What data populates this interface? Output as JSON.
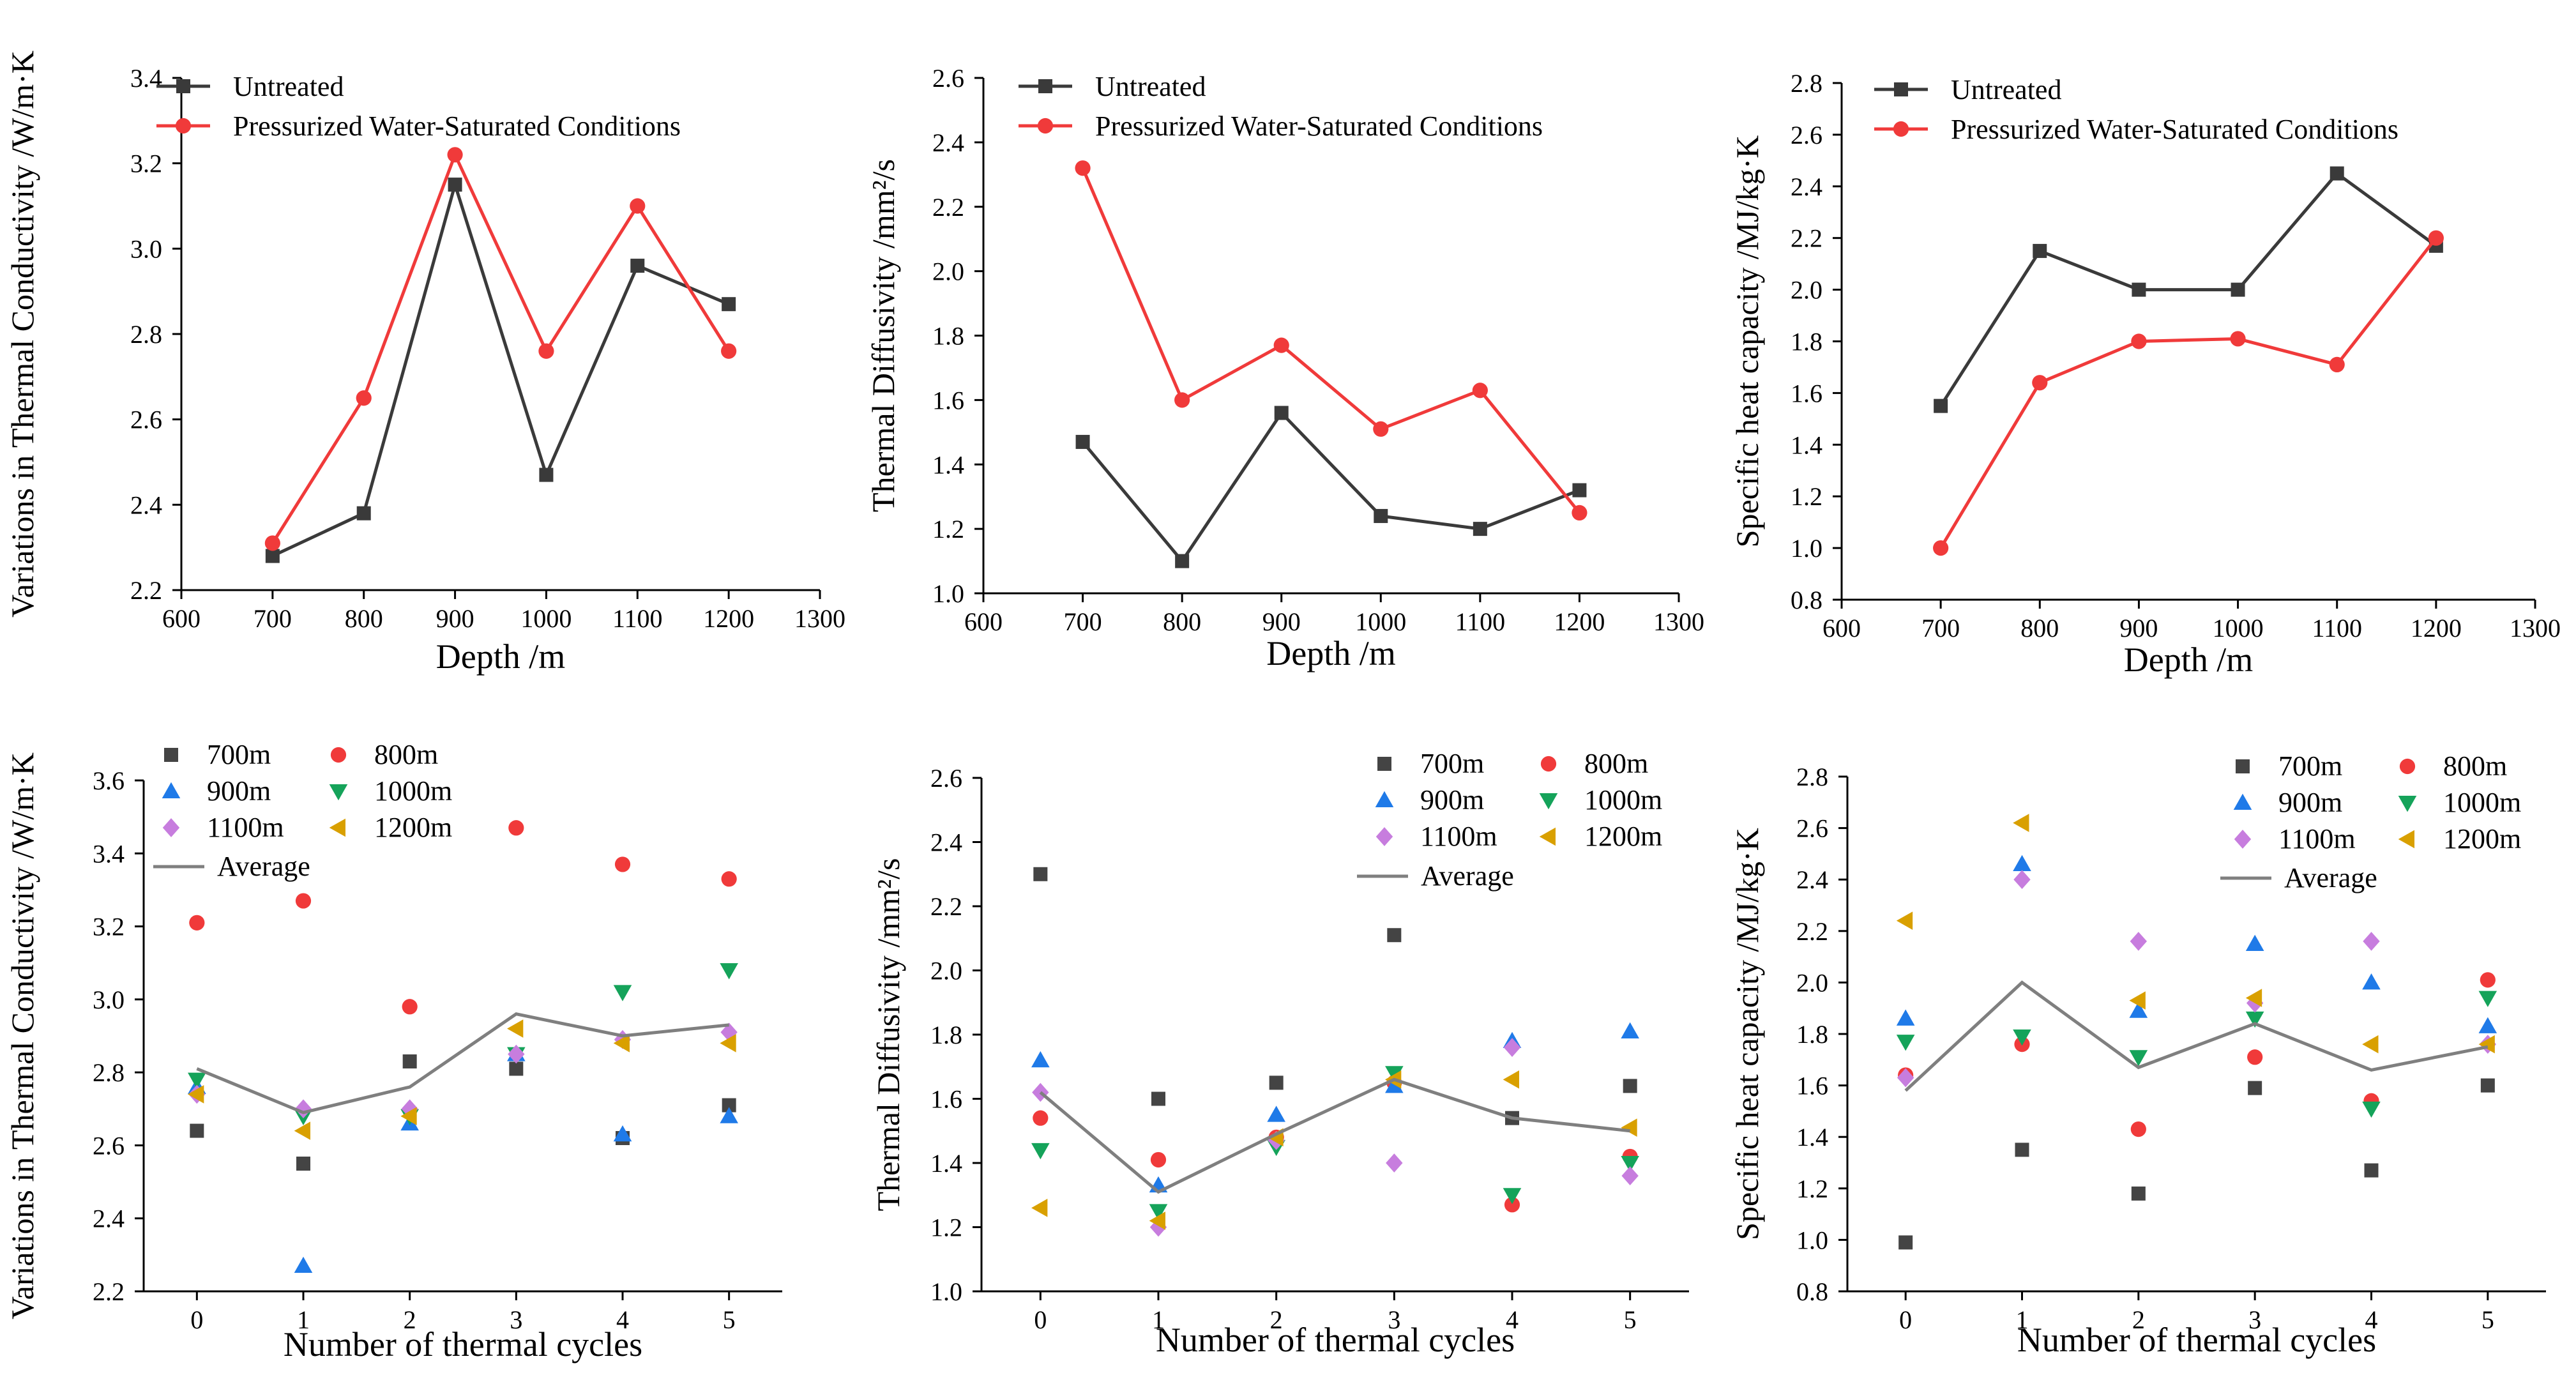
{
  "colors": {
    "untreated": "#3a3a3a",
    "pressurized": "#f03a3a",
    "average": "#7f7f7f",
    "d700": "#444444",
    "d800": "#f03a3a",
    "d900": "#1f7ae8",
    "d1000": "#15a35a",
    "d1100": "#c77dde",
    "d1200": "#d9a000"
  },
  "chart_data": [
    {
      "type": "line",
      "id": "conductivity-depth",
      "xlabel": "Depth /m",
      "ylabel": "Variations in Thermal Conductivity /W/m·K",
      "xlim": [
        600,
        1300
      ],
      "ylim": [
        2.2,
        3.4
      ],
      "xticks": [
        600,
        700,
        800,
        900,
        1000,
        1100,
        1200,
        1300
      ],
      "xtick_labels": [
        "600",
        "700",
        "800",
        "900",
        "1000",
        "1100",
        "1200",
        "1300"
      ],
      "yticks": [
        2.2,
        2.4,
        2.6,
        2.8,
        3.0,
        3.2,
        3.4
      ],
      "ytick_labels": [
        "2.2",
        "2.4",
        "2.6",
        "2.8",
        "3.0",
        "3.2",
        "3.4"
      ],
      "x": [
        700,
        800,
        900,
        1000,
        1100,
        1200
      ],
      "series": [
        {
          "name": "Untreated",
          "marker": "square",
          "values": [
            2.28,
            2.38,
            3.15,
            2.47,
            2.96,
            2.87
          ]
        },
        {
          "name": "Pressurized Water-Saturated Conditions",
          "marker": "circle",
          "values": [
            2.31,
            2.65,
            3.22,
            2.76,
            3.1,
            2.76
          ]
        }
      ]
    },
    {
      "type": "line",
      "id": "diffusivity-depth",
      "xlabel": "Depth /m",
      "ylabel": "Thermal Diffusivity /mm²/s",
      "xlim": [
        600,
        1300
      ],
      "ylim": [
        1.0,
        2.6
      ],
      "xticks": [
        600,
        700,
        800,
        900,
        1000,
        1100,
        1200,
        1300
      ],
      "xtick_labels": [
        "600",
        "700",
        "800",
        "900",
        "1000",
        "1100",
        "1200",
        "1300"
      ],
      "yticks": [
        1.0,
        1.2,
        1.4,
        1.6,
        1.8,
        2.0,
        2.2,
        2.4,
        2.6
      ],
      "ytick_labels": [
        "1.0",
        "1.2",
        "1.4",
        "1.6",
        "1.8",
        "2.0",
        "2.2",
        "2.4",
        "2.6"
      ],
      "x": [
        700,
        800,
        900,
        1000,
        1100,
        1200
      ],
      "series": [
        {
          "name": "Untreated",
          "marker": "square",
          "values": [
            1.47,
            1.1,
            1.56,
            1.24,
            1.2,
            1.32
          ]
        },
        {
          "name": "Pressurized Water-Saturated Conditions",
          "marker": "circle",
          "values": [
            2.32,
            1.6,
            1.77,
            1.51,
            1.63,
            1.25
          ]
        }
      ]
    },
    {
      "type": "line",
      "id": "heatcap-depth",
      "xlabel": "Depth /m",
      "ylabel": "Specific heat capacity /MJ/kg·K",
      "xlim": [
        600,
        1300
      ],
      "ylim": [
        0.8,
        2.8
      ],
      "xticks": [
        600,
        700,
        800,
        900,
        1000,
        1100,
        1200,
        1300
      ],
      "xtick_labels": [
        "600",
        "700",
        "800",
        "900",
        "1000",
        "1100",
        "1200",
        "1300"
      ],
      "yticks": [
        0.8,
        1.0,
        1.2,
        1.4,
        1.6,
        1.8,
        2.0,
        2.2,
        2.4,
        2.6,
        2.8
      ],
      "ytick_labels": [
        "0.8",
        "1.0",
        "1.2",
        "1.4",
        "1.6",
        "1.8",
        "2.0",
        "2.2",
        "2.4",
        "2.6",
        "2.8"
      ],
      "x": [
        700,
        800,
        900,
        1000,
        1100,
        1200
      ],
      "series": [
        {
          "name": "Untreated",
          "marker": "square",
          "values": [
            1.55,
            2.15,
            2.0,
            2.0,
            2.45,
            2.17
          ]
        },
        {
          "name": "Pressurized Water-Saturated Conditions",
          "marker": "circle",
          "values": [
            1.0,
            1.64,
            1.8,
            1.81,
            1.71,
            2.2
          ]
        }
      ]
    },
    {
      "type": "scatter",
      "id": "conductivity-cycles",
      "xlabel": "Number of thermal cycles",
      "ylabel": "Variations in Thermal Conductivity /W/m·K",
      "xlim": [
        -0.5,
        5.5
      ],
      "ylim": [
        2.2,
        3.6
      ],
      "xticks": [
        0,
        1,
        2,
        3,
        4,
        5
      ],
      "xtick_labels": [
        "0",
        "1",
        "2",
        "3",
        "4",
        "5"
      ],
      "yticks": [
        2.2,
        2.4,
        2.6,
        2.8,
        3.0,
        3.2,
        3.4,
        3.6
      ],
      "ytick_labels": [
        "2.2",
        "2.4",
        "2.6",
        "2.8",
        "3.0",
        "3.2",
        "3.4",
        "3.6"
      ],
      "x": [
        0,
        1,
        2,
        3,
        4,
        5
      ],
      "series": [
        {
          "name": "700m",
          "marker": "square",
          "values": [
            2.64,
            2.55,
            2.83,
            2.81,
            2.62,
            2.71
          ]
        },
        {
          "name": "800m",
          "marker": "circle",
          "values": [
            3.21,
            3.27,
            2.98,
            3.47,
            3.37,
            3.33
          ]
        },
        {
          "name": "900m",
          "marker": "triangle-up",
          "values": [
            2.76,
            2.27,
            2.66,
            2.85,
            2.63,
            2.68
          ]
        },
        {
          "name": "1000m",
          "marker": "triangle-down",
          "values": [
            2.78,
            2.68,
            2.68,
            2.85,
            3.02,
            3.08
          ]
        },
        {
          "name": "1100m",
          "marker": "diamond",
          "values": [
            2.74,
            2.7,
            2.7,
            2.85,
            2.89,
            2.91
          ]
        },
        {
          "name": "1200m",
          "marker": "triangle-left",
          "values": [
            2.74,
            2.64,
            2.68,
            2.92,
            2.88,
            2.88
          ]
        },
        {
          "name": "Average",
          "marker": "line",
          "values": [
            2.81,
            2.69,
            2.76,
            2.96,
            2.9,
            2.93
          ]
        }
      ]
    },
    {
      "type": "scatter",
      "id": "diffusivity-cycles",
      "xlabel": "Number of thermal cycles",
      "ylabel": "Thermal Diffusivity /mm²/s",
      "xlim": [
        -0.5,
        5.5
      ],
      "ylim": [
        1.0,
        2.6
      ],
      "xticks": [
        0,
        1,
        2,
        3,
        4,
        5
      ],
      "xtick_labels": [
        "0",
        "1",
        "2",
        "3",
        "4",
        "5"
      ],
      "yticks": [
        1.0,
        1.2,
        1.4,
        1.6,
        1.8,
        2.0,
        2.2,
        2.4,
        2.6
      ],
      "ytick_labels": [
        "1.0",
        "1.2",
        "1.4",
        "1.6",
        "1.8",
        "2.0",
        "2.2",
        "2.4",
        "2.6"
      ],
      "x": [
        0,
        1,
        2,
        3,
        4,
        5
      ],
      "series": [
        {
          "name": "700m",
          "marker": "square",
          "values": [
            2.3,
            1.6,
            1.65,
            2.11,
            1.54,
            1.64
          ]
        },
        {
          "name": "800m",
          "marker": "circle",
          "values": [
            1.54,
            1.41,
            1.48,
            1.65,
            1.27,
            1.42
          ]
        },
        {
          "name": "900m",
          "marker": "triangle-up",
          "values": [
            1.72,
            1.33,
            1.55,
            1.64,
            1.78,
            1.81
          ]
        },
        {
          "name": "1000m",
          "marker": "triangle-down",
          "values": [
            1.44,
            1.25,
            1.45,
            1.68,
            1.3,
            1.4
          ]
        },
        {
          "name": "1100m",
          "marker": "diamond",
          "values": [
            1.62,
            1.2,
            1.47,
            1.4,
            1.76,
            1.36
          ]
        },
        {
          "name": "1200m",
          "marker": "triangle-left",
          "values": [
            1.26,
            1.22,
            1.48,
            1.66,
            1.66,
            1.51
          ]
        },
        {
          "name": "Average",
          "marker": "line",
          "values": [
            1.62,
            1.31,
            1.49,
            1.66,
            1.54,
            1.5
          ]
        }
      ]
    },
    {
      "type": "scatter",
      "id": "heatcap-cycles",
      "xlabel": "Number of thermal cycles",
      "ylabel": "Specific heat capacity /MJ/kg·K",
      "xlim": [
        -0.5,
        5.5
      ],
      "ylim": [
        0.8,
        2.8
      ],
      "xticks": [
        0,
        1,
        2,
        3,
        4,
        5
      ],
      "xtick_labels": [
        "0",
        "1",
        "2",
        "3",
        "4",
        "5"
      ],
      "yticks": [
        0.8,
        1.0,
        1.2,
        1.4,
        1.6,
        1.8,
        2.0,
        2.2,
        2.4,
        2.6,
        2.8
      ],
      "ytick_labels": [
        "0.8",
        "1.0",
        "1.2",
        "1.4",
        "1.6",
        "1.8",
        "2.0",
        "2.2",
        "2.4",
        "2.6",
        "2.8"
      ],
      "x": [
        0,
        1,
        2,
        3,
        4,
        5
      ],
      "series": [
        {
          "name": "700m",
          "marker": "square",
          "values": [
            0.99,
            1.35,
            1.18,
            1.59,
            1.27,
            1.6
          ]
        },
        {
          "name": "800m",
          "marker": "circle",
          "values": [
            1.64,
            1.76,
            1.43,
            1.71,
            1.54,
            2.01
          ]
        },
        {
          "name": "900m",
          "marker": "triangle-up",
          "values": [
            1.86,
            2.46,
            1.89,
            2.15,
            2.0,
            1.83
          ]
        },
        {
          "name": "1000m",
          "marker": "triangle-down",
          "values": [
            1.77,
            1.79,
            1.71,
            1.86,
            1.51,
            1.94
          ]
        },
        {
          "name": "1100m",
          "marker": "diamond",
          "values": [
            1.63,
            2.4,
            2.16,
            1.92,
            2.16,
            1.76
          ]
        },
        {
          "name": "1200m",
          "marker": "triangle-left",
          "values": [
            2.24,
            2.62,
            1.93,
            1.94,
            1.76,
            1.76
          ]
        },
        {
          "name": "Average",
          "marker": "line",
          "values": [
            1.58,
            2.0,
            1.67,
            1.84,
            1.66,
            1.75
          ]
        }
      ]
    }
  ]
}
